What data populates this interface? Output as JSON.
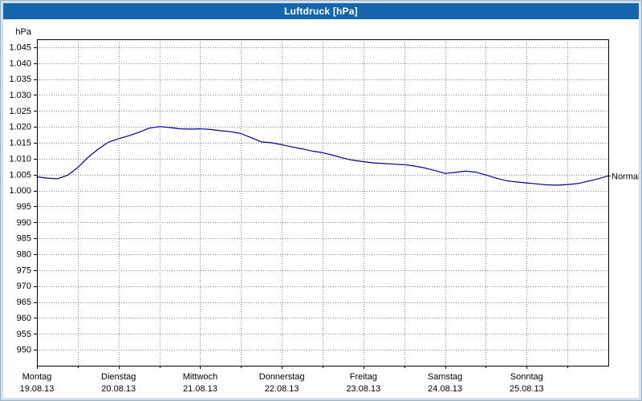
{
  "window": {
    "title": "Luftdruck [hPa]"
  },
  "colors": {
    "title_bar": "#1565ae",
    "frame": "#cfe0ee",
    "grid": "#808080",
    "line": "#00008b",
    "plot_border": "#000000"
  },
  "chart_data": {
    "type": "line",
    "title": "Luftdruck [hPa]",
    "end_marker_label": "Normal",
    "grid": {
      "horizontal": true,
      "vertical": "half-day",
      "style": "dotted"
    },
    "y_axis": {
      "unit": "hPa",
      "min": 945.0,
      "max": 1047.5,
      "tick_step": 5,
      "tick_labels": [
        "1.045",
        "1.040",
        "1.035",
        "1.030",
        "1.025",
        "1.020",
        "1.015",
        "1.010",
        "1.005",
        "1.000",
        "995",
        "990",
        "985",
        "980",
        "975",
        "970",
        "965",
        "960",
        "955",
        "950"
      ],
      "tick_values": [
        1045,
        1040,
        1035,
        1030,
        1025,
        1020,
        1015,
        1010,
        1005,
        1000,
        995,
        990,
        985,
        980,
        975,
        970,
        965,
        960,
        955,
        950
      ]
    },
    "x_axis": {
      "total_days": 7,
      "days": [
        {
          "name": "Montag",
          "date": "19.08.13"
        },
        {
          "name": "Dienstag",
          "date": "20.08.13"
        },
        {
          "name": "Mittwoch",
          "date": "21.08.13"
        },
        {
          "name": "Donnerstag",
          "date": "22.08.13"
        },
        {
          "name": "Freitag",
          "date": "23.08.13"
        },
        {
          "name": "Samstag",
          "date": "24.08.13"
        },
        {
          "name": "Sonntag",
          "date": "25.08.13"
        }
      ]
    },
    "series": [
      {
        "name": "Luftdruck",
        "color": "#00008b",
        "points": [
          [
            0.0,
            1004.3
          ],
          [
            0.125,
            1003.9
          ],
          [
            0.25,
            1003.7
          ],
          [
            0.375,
            1004.8
          ],
          [
            0.5,
            1007.2
          ],
          [
            0.625,
            1010.4
          ],
          [
            0.75,
            1013.0
          ],
          [
            0.875,
            1015.2
          ],
          [
            1.0,
            1016.3
          ],
          [
            1.125,
            1017.2
          ],
          [
            1.25,
            1018.3
          ],
          [
            1.375,
            1019.6
          ],
          [
            1.5,
            1020.1
          ],
          [
            1.625,
            1019.8
          ],
          [
            1.75,
            1019.4
          ],
          [
            1.875,
            1019.3
          ],
          [
            2.0,
            1019.4
          ],
          [
            2.125,
            1019.2
          ],
          [
            2.25,
            1018.8
          ],
          [
            2.375,
            1018.5
          ],
          [
            2.5,
            1017.9
          ],
          [
            2.625,
            1016.6
          ],
          [
            2.75,
            1015.3
          ],
          [
            2.875,
            1015.0
          ],
          [
            3.0,
            1014.4
          ],
          [
            3.125,
            1013.7
          ],
          [
            3.25,
            1013.1
          ],
          [
            3.375,
            1012.4
          ],
          [
            3.5,
            1011.9
          ],
          [
            3.625,
            1011.1
          ],
          [
            3.75,
            1010.2
          ],
          [
            3.875,
            1009.5
          ],
          [
            4.0,
            1009.1
          ],
          [
            4.125,
            1008.7
          ],
          [
            4.25,
            1008.5
          ],
          [
            4.375,
            1008.3
          ],
          [
            4.5,
            1008.1
          ],
          [
            4.625,
            1007.7
          ],
          [
            4.75,
            1007.1
          ],
          [
            4.875,
            1006.3
          ],
          [
            5.0,
            1005.4
          ],
          [
            5.125,
            1005.7
          ],
          [
            5.25,
            1006.1
          ],
          [
            5.375,
            1005.8
          ],
          [
            5.5,
            1004.9
          ],
          [
            5.625,
            1003.9
          ],
          [
            5.75,
            1003.1
          ],
          [
            5.875,
            1002.7
          ],
          [
            6.0,
            1002.4
          ],
          [
            6.125,
            1002.1
          ],
          [
            6.25,
            1001.8
          ],
          [
            6.375,
            1001.7
          ],
          [
            6.5,
            1001.9
          ],
          [
            6.625,
            1002.2
          ],
          [
            6.75,
            1002.9
          ],
          [
            6.875,
            1003.7
          ],
          [
            7.0,
            1004.6
          ]
        ]
      }
    ]
  }
}
